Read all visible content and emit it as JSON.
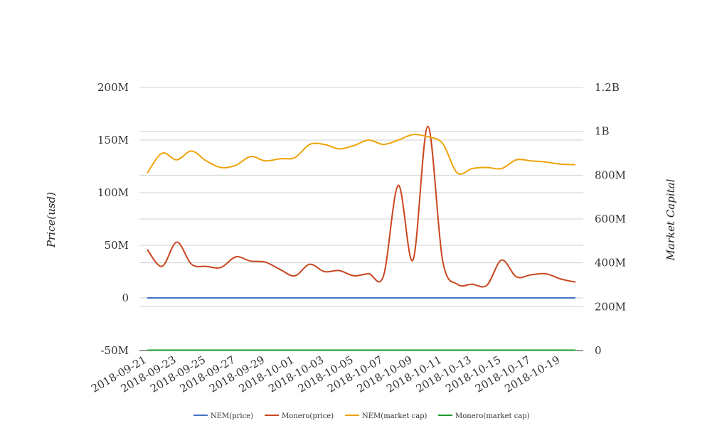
{
  "chart_data": {
    "type": "line",
    "title": "",
    "ylabel_left": "Price(usd)",
    "ylabel_right": "Market Capital",
    "ylim_left": [
      -50000000,
      200000000
    ],
    "ylim_right": [
      0,
      1200000000
    ],
    "left_ticks": [
      "-50M",
      "0",
      "50M",
      "100M",
      "150M",
      "200M"
    ],
    "right_ticks": [
      "0",
      "200M",
      "400M",
      "600M",
      "800M",
      "1B",
      "1.2B"
    ],
    "x_tick_labels": [
      "2018-09-21",
      "2018-09-23",
      "2018-09-25",
      "2018-09-27",
      "2018-09-29",
      "2018-10-01",
      "2018-10-03",
      "2018-10-05",
      "2018-10-07",
      "2018-10-09",
      "2018-10-11",
      "2018-10-13",
      "2018-10-15",
      "2018-10-17",
      "2018-10-19"
    ],
    "x": [
      "2018-09-21",
      "2018-09-22",
      "2018-09-23",
      "2018-09-24",
      "2018-09-25",
      "2018-09-26",
      "2018-09-27",
      "2018-09-28",
      "2018-09-29",
      "2018-09-30",
      "2018-10-01",
      "2018-10-02",
      "2018-10-03",
      "2018-10-04",
      "2018-10-05",
      "2018-10-06",
      "2018-10-07",
      "2018-10-08",
      "2018-10-09",
      "2018-10-10",
      "2018-10-11",
      "2018-10-12",
      "2018-10-13",
      "2018-10-14",
      "2018-10-15",
      "2018-10-16",
      "2018-10-17",
      "2018-10-18",
      "2018-10-19",
      "2018-10-20"
    ],
    "grid": true,
    "legend_position": "bottom",
    "series": [
      {
        "name": "NEM(price)",
        "axis": "left",
        "color": "#4472c4",
        "values": [
          0.11,
          0.11,
          0.11,
          0.11,
          0.11,
          0.11,
          0.11,
          0.11,
          0.11,
          0.11,
          0.11,
          0.11,
          0.11,
          0.11,
          0.11,
          0.11,
          0.11,
          0.11,
          0.11,
          0.11,
          0.11,
          0.11,
          0.11,
          0.11,
          0.11,
          0.11,
          0.11,
          0.11,
          0.11,
          0.11
        ]
      },
      {
        "name": "Monero(price)",
        "axis": "left",
        "color": "#c9461f",
        "values": [
          46000000,
          30000000,
          53000000,
          32000000,
          30000000,
          29000000,
          39000000,
          35000000,
          34000000,
          27000000,
          21000000,
          32000000,
          25000000,
          26000000,
          21000000,
          23000000,
          21000000,
          107000000,
          36000000,
          163000000,
          36000000,
          13000000,
          13000000,
          12000000,
          36000000,
          20000000,
          22000000,
          23000000,
          18000000,
          15000000
        ]
      },
      {
        "name": "NEM(market cap)",
        "axis": "right",
        "color": "#f0a30a",
        "values": [
          810000000,
          900000000,
          870000000,
          910000000,
          865000000,
          835000000,
          845000000,
          885000000,
          865000000,
          875000000,
          880000000,
          940000000,
          940000000,
          920000000,
          935000000,
          960000000,
          940000000,
          960000000,
          985000000,
          975000000,
          945000000,
          810000000,
          830000000,
          835000000,
          830000000,
          870000000,
          865000000,
          860000000,
          850000000,
          848000000
        ]
      },
      {
        "name": "Monero(market cap)",
        "axis": "right",
        "color": "#1a9a2a",
        "values": [
          1800000,
          1800000,
          1800000,
          1800000,
          1800000,
          1800000,
          1800000,
          1800000,
          1800000,
          1800000,
          1800000,
          1800000,
          1800000,
          1800000,
          1800000,
          1800000,
          1800000,
          1800000,
          1800000,
          1800000,
          1800000,
          1800000,
          1800000,
          1800000,
          1800000,
          1800000,
          1800000,
          1800000,
          1800000,
          1800000
        ]
      }
    ]
  }
}
